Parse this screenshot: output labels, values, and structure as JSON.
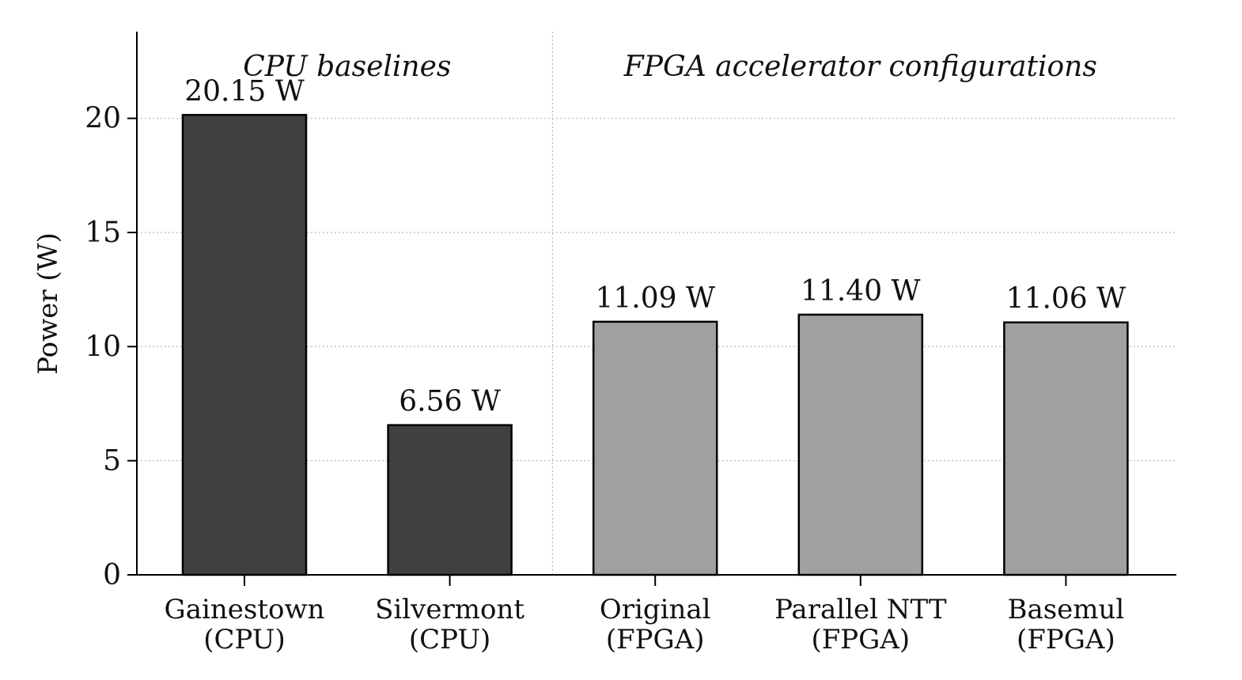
{
  "chart_data": {
    "type": "bar",
    "categories": [
      "Gainestown\n(CPU)",
      "Silvermont\n(CPU)",
      "Original\n(FPGA)",
      "Parallel NTT\n(FPGA)",
      "Basemul\n(FPGA)"
    ],
    "values": [
      20.15,
      6.56,
      11.09,
      11.4,
      11.06
    ],
    "value_labels": [
      "20.15 W",
      "6.56 W",
      "11.09 W",
      "11.40 W",
      "11.06 W"
    ],
    "bar_colors": [
      "#404040",
      "#404040",
      "#a0a0a0",
      "#a0a0a0",
      "#a0a0a0"
    ],
    "edge_color": "#000000",
    "groups": [
      {
        "label": "CPU baselines",
        "start": 0,
        "end": 1
      },
      {
        "label": "FPGA accelerator configurations",
        "start": 2,
        "end": 4
      }
    ],
    "ylabel": "Power (W)",
    "xlabel": "",
    "ylim": [
      0,
      23.8
    ],
    "yticks": [
      0,
      5,
      10,
      15,
      20
    ],
    "grid": "y-dotted",
    "legend": "none"
  }
}
